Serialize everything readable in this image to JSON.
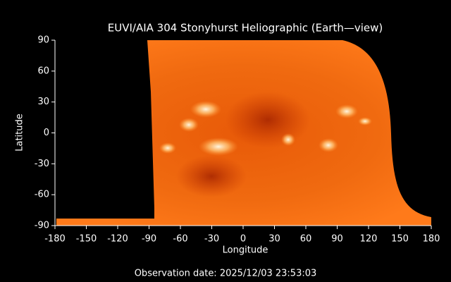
{
  "chart_data": {
    "type": "image",
    "title": "EUVI/AIA 304 Stonyhurst Heliographic (Earth—view)",
    "xlabel": "Longitude",
    "ylabel": "Latitude",
    "caption": "Observation date: 2025/12/03 23:53:03",
    "xlim": [
      -180,
      180
    ],
    "ylim": [
      -90,
      90
    ],
    "xticks": [
      -180,
      -150,
      -120,
      -90,
      -60,
      -30,
      0,
      30,
      60,
      90,
      120,
      150,
      180
    ],
    "yticks": [
      -90,
      -60,
      -30,
      0,
      30,
      60,
      90
    ]
  }
}
